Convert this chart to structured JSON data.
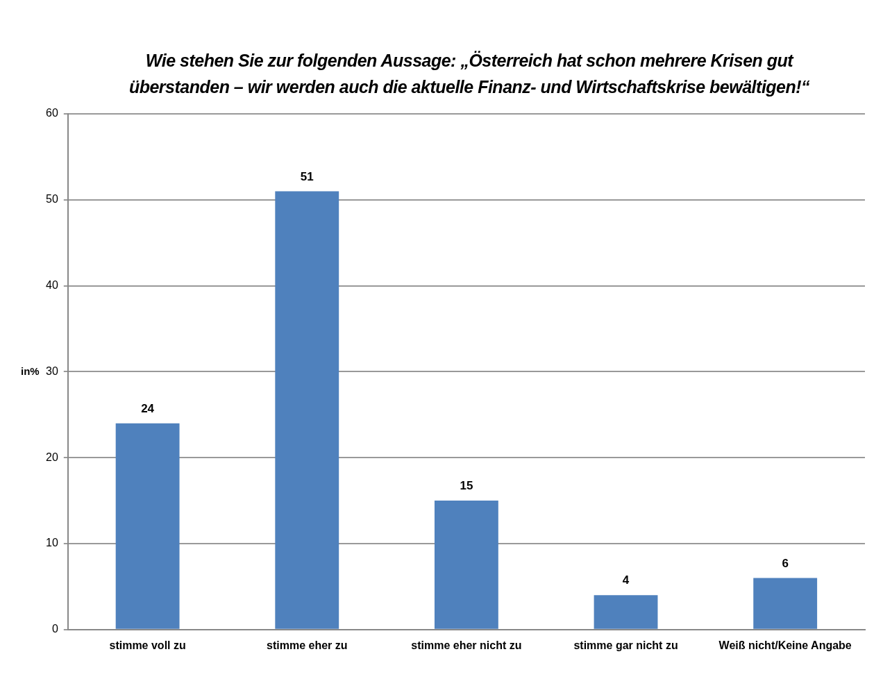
{
  "chart_data": {
    "type": "bar",
    "title": "Wie stehen Sie zur folgenden Aussage: „Österreich hat schon mehrere Krisen gut überstanden – wir werden auch die aktuelle Finanz- und Wirtschaftskrise bewältigen!“",
    "ylabel": "in%",
    "categories": [
      "stimme voll zu",
      "stimme eher zu",
      "stimme eher nicht zu",
      "stimme gar nicht zu",
      "Weiß nicht/Keine Angabe"
    ],
    "values": [
      24,
      51,
      15,
      4,
      6
    ],
    "color": "#4f81bd",
    "ylim": [
      0,
      60
    ],
    "yticks": [
      0,
      10,
      20,
      30,
      40,
      50,
      60
    ],
    "grid": "y",
    "data_labels": true,
    "legend": false
  }
}
